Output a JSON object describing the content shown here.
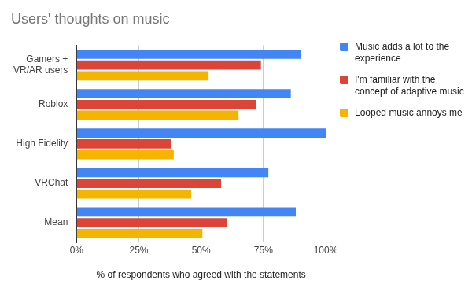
{
  "chart_data": {
    "type": "bar",
    "orientation": "horizontal",
    "title": "Users' thoughts on music",
    "x_label": "% of respondents who agreed with the statements",
    "categories": [
      "Gamers + VR/AR users",
      "Roblox",
      "High Fidelity",
      "VRChat",
      "Mean"
    ],
    "series": [
      {
        "name": "Music adds a lot to the experience",
        "color": "#4285f4",
        "values": [
          90,
          86,
          100,
          77,
          88
        ]
      },
      {
        "name": "I'm familiar with the concept of adaptive music",
        "color": "#db4437",
        "values": [
          74,
          72,
          38,
          58,
          60.5
        ]
      },
      {
        "name": "Looped music annoys me",
        "color": "#f4b400",
        "values": [
          53,
          65,
          39,
          46,
          50.5
        ]
      }
    ],
    "xlim": [
      0,
      100
    ],
    "xticks": [
      {
        "value": 0,
        "label": "0%"
      },
      {
        "value": 25,
        "label": "25%"
      },
      {
        "value": 50,
        "label": "50%"
      },
      {
        "value": 75,
        "label": "75%"
      },
      {
        "value": 100,
        "label": "100%"
      }
    ],
    "grid": true,
    "legend": "right"
  }
}
